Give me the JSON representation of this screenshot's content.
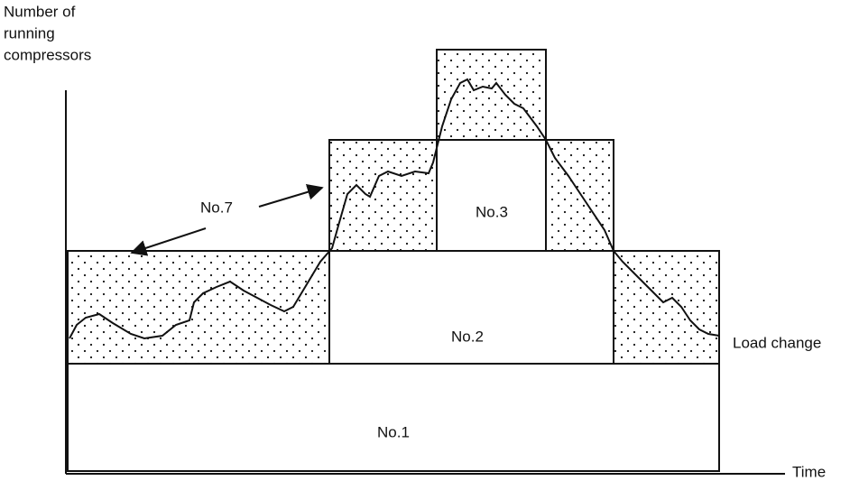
{
  "axes": {
    "y_label": [
      "Number of",
      "running",
      "compressors"
    ],
    "x_label": "Time"
  },
  "blocks": [
    {
      "label": "No.1"
    },
    {
      "label": "No.2"
    },
    {
      "label": "No.3"
    }
  ],
  "annotations": {
    "variable": "No.7",
    "load": "Load change"
  }
}
